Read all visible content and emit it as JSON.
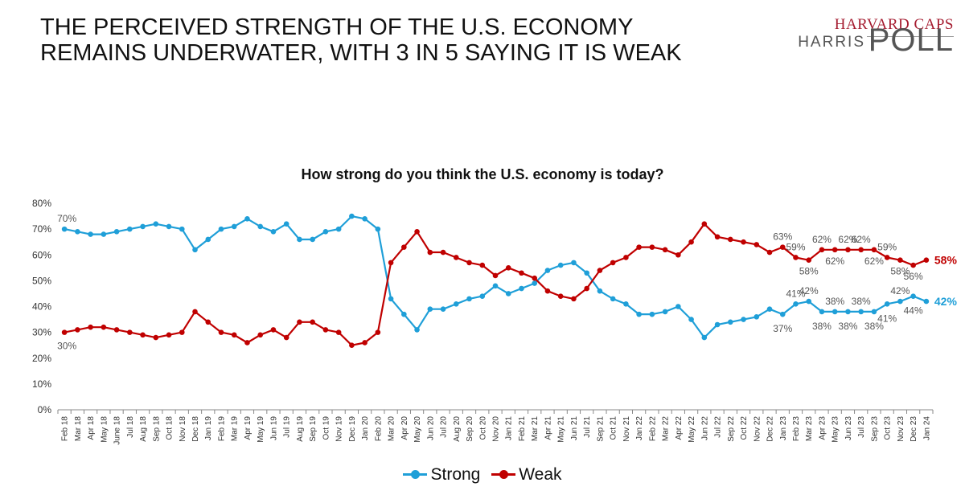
{
  "headline": "THE PERCEIVED STRENGTH OF THE U.S. ECONOMY REMAINS UNDERWATER, WITH 3 IN 5 SAYING IT IS WEAK",
  "logo": {
    "top": "HARVARD CAPS",
    "left": "HARRIS",
    "right": "POLL"
  },
  "colors": {
    "strong": "#1f9fd8",
    "weak": "#c00000",
    "axis_text": "#333333",
    "label_text": "#555555"
  },
  "chart_data": {
    "type": "line",
    "title": "How strong do you think the U.S. economy is today?",
    "xlabel": "",
    "ylabel": "",
    "ylim": [
      0,
      80
    ],
    "yticks": [
      "0%",
      "10%",
      "20%",
      "30%",
      "40%",
      "50%",
      "60%",
      "70%",
      "80%"
    ],
    "grid": false,
    "legend_position": "bottom-center",
    "x": [
      "Feb 18",
      "Mar 18",
      "Apr 18",
      "May 18",
      "June 18",
      "Jul 18",
      "Aug 18",
      "Sep 18",
      "Oct 18",
      "Nov 18",
      "Dec 18",
      "Jan 19",
      "Feb 19",
      "Mar 19",
      "Apr 19",
      "May 19",
      "Jun 19",
      "Jul 19",
      "Aug 19",
      "Sep 19",
      "Oct 19",
      "Nov 19",
      "Dec 19",
      "Jan 20",
      "Feb 20",
      "Mar 20",
      "Apr 20",
      "May 20",
      "Jun 20",
      "Jul 20",
      "Aug 20",
      "Sep 20",
      "Oct 20",
      "Nov 20",
      "Jan 21",
      "Feb 21",
      "Mar 21",
      "Apr 21",
      "May 21",
      "Jun 21",
      "Jul 21",
      "Sep 21",
      "Oct 21",
      "Nov 21",
      "Jan 22",
      "Feb 22",
      "Mar 22",
      "Apr 22",
      "May 22",
      "Jun 22",
      "Jul 22",
      "Sep 22",
      "Oct 22",
      "Nov 22",
      "Dec 22",
      "Jan 23",
      "Feb 23",
      "Mar 23",
      "Apr 23",
      "May 23",
      "Jun 23",
      "Jul 23",
      "Sep 23",
      "Oct 23",
      "Nov 23",
      "Dec 23",
      "Jan 24"
    ],
    "series": [
      {
        "name": "Strong",
        "values": [
          70,
          69,
          68,
          68,
          69,
          70,
          71,
          72,
          71,
          70,
          62,
          66,
          70,
          71,
          74,
          71,
          69,
          72,
          66,
          66,
          69,
          70,
          75,
          74,
          70,
          43,
          37,
          31,
          39,
          39,
          41,
          43,
          44,
          48,
          45,
          47,
          49,
          54,
          56,
          57,
          53,
          46,
          43,
          41,
          37,
          37,
          38,
          40,
          35,
          28,
          33,
          34,
          35,
          36,
          39,
          37,
          41,
          42,
          38,
          38,
          38,
          38,
          38,
          41,
          42,
          44,
          42
        ]
      },
      {
        "name": "Weak",
        "values": [
          30,
          31,
          32,
          32,
          31,
          30,
          29,
          28,
          29,
          30,
          38,
          34,
          30,
          29,
          26,
          29,
          31,
          28,
          34,
          34,
          31,
          30,
          25,
          26,
          30,
          57,
          63,
          69,
          61,
          61,
          59,
          57,
          56,
          52,
          55,
          53,
          51,
          46,
          44,
          43,
          47,
          54,
          57,
          59,
          63,
          63,
          62,
          60,
          65,
          72,
          67,
          66,
          65,
          64,
          61,
          63,
          59,
          58,
          62,
          62,
          62,
          62,
          62,
          59,
          58,
          56,
          58
        ]
      }
    ],
    "annotations": [
      {
        "series": "Strong",
        "x": "Feb 18",
        "text": "70%"
      },
      {
        "series": "Weak",
        "x": "Feb 18",
        "text": "30%"
      },
      {
        "series": "Weak",
        "x": "Jan 23",
        "text": "63%"
      },
      {
        "series": "Weak",
        "x": "Feb 23",
        "text": "59%"
      },
      {
        "series": "Weak",
        "x": "Mar 23",
        "text": "58%"
      },
      {
        "series": "Weak",
        "x": "Apr 23",
        "text": "62%"
      },
      {
        "series": "Weak",
        "x": "May 23",
        "text": "62%"
      },
      {
        "series": "Weak",
        "x": "Jun 23",
        "text": "62%"
      },
      {
        "series": "Weak",
        "x": "Jul 23",
        "text": "62%"
      },
      {
        "series": "Weak",
        "x": "Sep 23",
        "text": "62%"
      },
      {
        "series": "Weak",
        "x": "Oct 23",
        "text": "59%"
      },
      {
        "series": "Weak",
        "x": "Nov 23",
        "text": "58%"
      },
      {
        "series": "Weak",
        "x": "Dec 23",
        "text": "56%"
      },
      {
        "series": "Weak",
        "x": "Jan 24",
        "text": "58%"
      },
      {
        "series": "Strong",
        "x": "Jan 23",
        "text": "37%"
      },
      {
        "series": "Strong",
        "x": "Feb 23",
        "text": "41%"
      },
      {
        "series": "Strong",
        "x": "Mar 23",
        "text": "42%"
      },
      {
        "series": "Strong",
        "x": "Apr 23",
        "text": "38%"
      },
      {
        "series": "Strong",
        "x": "May 23",
        "text": "38%"
      },
      {
        "series": "Strong",
        "x": "Jun 23",
        "text": "38%"
      },
      {
        "series": "Strong",
        "x": "Jul 23",
        "text": "38%"
      },
      {
        "series": "Strong",
        "x": "Sep 23",
        "text": "38%"
      },
      {
        "series": "Strong",
        "x": "Oct 23",
        "text": "41%"
      },
      {
        "series": "Strong",
        "x": "Nov 23",
        "text": "42%"
      },
      {
        "series": "Strong",
        "x": "Dec 23",
        "text": "44%"
      },
      {
        "series": "Strong",
        "x": "Jan 24",
        "text": "42%"
      }
    ]
  }
}
